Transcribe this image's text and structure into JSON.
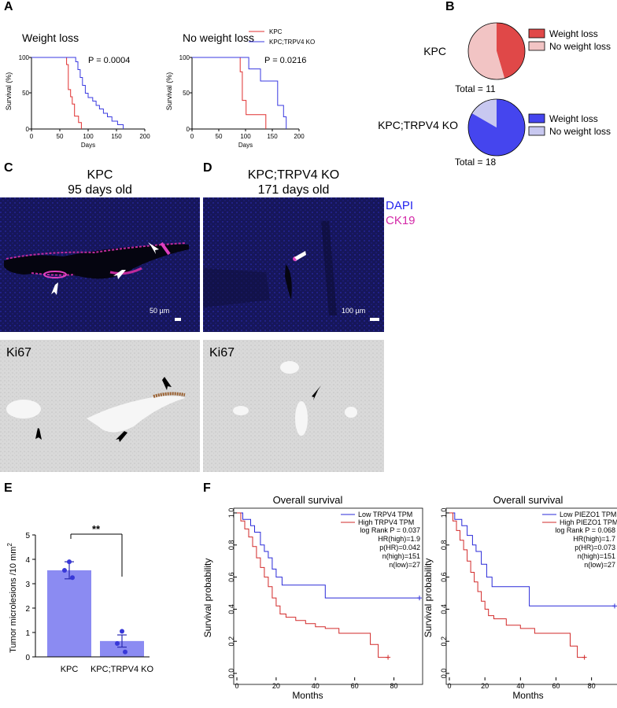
{
  "panel_labels": {
    "a": "A",
    "b": "B",
    "c": "C",
    "d": "D",
    "e": "E",
    "f": "F"
  },
  "panel_a": {
    "ylabel": "Survival (%)",
    "xlabel": "Days",
    "yticks": [
      "0",
      "50",
      "100"
    ],
    "legend": {
      "kpc": "KPC",
      "ko": "KPC;TRPV4 KO"
    },
    "colors": {
      "kpc": "#e03030",
      "ko": "#3a3ae0"
    },
    "left": {
      "title": "Weight loss",
      "pvalue": "P = 0.0004",
      "xticks": [
        "0",
        "50",
        "100",
        "150",
        "200"
      ],
      "chart_data": {
        "type": "line",
        "xlim": [
          0,
          200
        ],
        "ylim": [
          0,
          100
        ],
        "series": [
          {
            "name": "KPC",
            "steps": [
              [
                0,
                100
              ],
              [
                62,
                100
              ],
              [
                62,
                90
              ],
              [
                65,
                90
              ],
              [
                65,
                55
              ],
              [
                69,
                55
              ],
              [
                69,
                45
              ],
              [
                72,
                45
              ],
              [
                72,
                35
              ],
              [
                76,
                35
              ],
              [
                76,
                18
              ],
              [
                83,
                18
              ],
              [
                83,
                9
              ],
              [
                88,
                9
              ],
              [
                88,
                0
              ]
            ]
          },
          {
            "name": "KPC;TRPV4 KO",
            "steps": [
              [
                0,
                100
              ],
              [
                78,
                100
              ],
              [
                78,
                94
              ],
              [
                82,
                94
              ],
              [
                82,
                83
              ],
              [
                86,
                83
              ],
              [
                86,
                72
              ],
              [
                90,
                72
              ],
              [
                90,
                61
              ],
              [
                95,
                61
              ],
              [
                95,
                50
              ],
              [
                100,
                50
              ],
              [
                100,
                44
              ],
              [
                108,
                44
              ],
              [
                108,
                39
              ],
              [
                114,
                39
              ],
              [
                114,
                33
              ],
              [
                120,
                33
              ],
              [
                120,
                28
              ],
              [
                127,
                28
              ],
              [
                127,
                22
              ],
              [
                134,
                22
              ],
              [
                134,
                17
              ],
              [
                142,
                17
              ],
              [
                142,
                11
              ],
              [
                152,
                11
              ],
              [
                152,
                6
              ],
              [
                162,
                6
              ],
              [
                162,
                0
              ]
            ]
          }
        ]
      }
    },
    "right": {
      "title": "No weight loss",
      "pvalue": "P = 0.0216",
      "xticks": [
        "0",
        "50",
        "100",
        "150",
        "200"
      ],
      "chart_data": {
        "type": "line",
        "xlim": [
          0,
          200
        ],
        "ylim": [
          0,
          100
        ],
        "series": [
          {
            "name": "KPC",
            "steps": [
              [
                0,
                100
              ],
              [
                90,
                100
              ],
              [
                90,
                80
              ],
              [
                94,
                80
              ],
              [
                94,
                40
              ],
              [
                101,
                40
              ],
              [
                101,
                20
              ],
              [
                138,
                20
              ],
              [
                138,
                0
              ]
            ]
          },
          {
            "name": "KPC;TRPV4 KO",
            "steps": [
              [
                0,
                100
              ],
              [
                106,
                100
              ],
              [
                106,
                84
              ],
              [
                128,
                84
              ],
              [
                128,
                67
              ],
              [
                160,
                67
              ],
              [
                160,
                33
              ],
              [
                171,
                33
              ],
              [
                171,
                17
              ],
              [
                176,
                17
              ],
              [
                176,
                0
              ]
            ]
          }
        ]
      }
    }
  },
  "panel_b": {
    "kpc": {
      "label": "KPC",
      "total": "Total = 11",
      "chart_data": {
        "type": "pie",
        "slices": [
          {
            "name": "Weight loss",
            "value": 5,
            "color": "#e04848"
          },
          {
            "name": "No weight loss",
            "value": 6,
            "color": "#f2c4c4"
          }
        ]
      }
    },
    "ko": {
      "label": "KPC;TRPV4 KO",
      "total": "Total = 18",
      "chart_data": {
        "type": "pie",
        "slices": [
          {
            "name": "Weight loss",
            "value": 15,
            "color": "#4545ee"
          },
          {
            "name": "No weight loss",
            "value": 3,
            "color": "#c8c8f0"
          }
        ]
      }
    }
  },
  "panel_c": {
    "title_line1": "KPC",
    "title_line2": "95 days old",
    "scalebar": "50 µm",
    "ihc_label": "Ki67"
  },
  "panel_d": {
    "title_line1": "KPC;TRPV4 KO",
    "title_line2": "171 days old",
    "scalebar": "100 µm",
    "ihc_label": "Ki67"
  },
  "stain_legend": {
    "dapi": "DAPI",
    "ck19": "CK19",
    "dapi_color": "#2222ee",
    "ck19_color": "#d42aa8"
  },
  "panel_e": {
    "ylabel": "Tumor microlesions /10 mm",
    "ylabel_sup": "2",
    "significance": "**",
    "yticks": [
      "0",
      "1",
      "2",
      "3",
      "4",
      "5"
    ],
    "chart_data": {
      "type": "bar",
      "categories": [
        "KPC",
        "KPC;TRPV4 KO"
      ],
      "values": [
        3.55,
        0.65
      ],
      "errors": [
        0.35,
        0.25
      ],
      "points": [
        [
          3.9,
          3.55,
          3.25
        ],
        [
          1.05,
          0.55,
          0.2
        ]
      ],
      "ylim": [
        0,
        5
      ],
      "color": "#8b8bf2"
    }
  },
  "panel_f": {
    "title": "Overall survival",
    "ylabel": "Survival probability",
    "xlabel": "Months",
    "yticks": [
      "0.0",
      "0.2",
      "0.4",
      "0.6",
      "0.8",
      "1.0"
    ],
    "xticks": [
      "0",
      "20",
      "40",
      "60",
      "80"
    ],
    "left": {
      "legend_low": "Low TRPV4 TPM",
      "legend_high": "High TRPV4 TPM",
      "stats": [
        "log Rank P = 0.037",
        "HR(high)=1.9",
        "p(HR)=0.042",
        "n(high)=151",
        "n(low)=27"
      ],
      "chart_data": {
        "type": "line",
        "xlim": [
          0,
          93
        ],
        "ylim": [
          0,
          1
        ],
        "series": [
          {
            "name": "Low TRPV4 TPM",
            "steps": [
              [
                0,
                1
              ],
              [
                3,
                1
              ],
              [
                3,
                0.96
              ],
              [
                7,
                0.96
              ],
              [
                7,
                0.92
              ],
              [
                9,
                0.92
              ],
              [
                9,
                0.88
              ],
              [
                12,
                0.88
              ],
              [
                12,
                0.8
              ],
              [
                14,
                0.8
              ],
              [
                14,
                0.76
              ],
              [
                16,
                0.76
              ],
              [
                16,
                0.72
              ],
              [
                18,
                0.72
              ],
              [
                18,
                0.65
              ],
              [
                20,
                0.65
              ],
              [
                20,
                0.6
              ],
              [
                23,
                0.6
              ],
              [
                23,
                0.55
              ],
              [
                45,
                0.55
              ],
              [
                45,
                0.47
              ],
              [
                93,
                0.47
              ]
            ]
          },
          {
            "name": "High TRPV4 TPM",
            "steps": [
              [
                0,
                1
              ],
              [
                2,
                1
              ],
              [
                2,
                0.95
              ],
              [
                4,
                0.95
              ],
              [
                4,
                0.9
              ],
              [
                6,
                0.9
              ],
              [
                6,
                0.85
              ],
              [
                8,
                0.85
              ],
              [
                8,
                0.79
              ],
              [
                10,
                0.79
              ],
              [
                10,
                0.72
              ],
              [
                12,
                0.72
              ],
              [
                12,
                0.66
              ],
              [
                14,
                0.66
              ],
              [
                14,
                0.6
              ],
              [
                16,
                0.6
              ],
              [
                16,
                0.54
              ],
              [
                18,
                0.54
              ],
              [
                18,
                0.47
              ],
              [
                20,
                0.47
              ],
              [
                20,
                0.42
              ],
              [
                22,
                0.42
              ],
              [
                22,
                0.37
              ],
              [
                25,
                0.37
              ],
              [
                25,
                0.35
              ],
              [
                30,
                0.35
              ],
              [
                30,
                0.33
              ],
              [
                35,
                0.33
              ],
              [
                35,
                0.31
              ],
              [
                40,
                0.31
              ],
              [
                40,
                0.29
              ],
              [
                45,
                0.29
              ],
              [
                45,
                0.28
              ],
              [
                52,
                0.28
              ],
              [
                52,
                0.25
              ],
              [
                68,
                0.25
              ],
              [
                68,
                0.18
              ],
              [
                72,
                0.18
              ],
              [
                72,
                0.1
              ],
              [
                77,
                0.1
              ]
            ]
          }
        ]
      }
    },
    "right": {
      "legend_low": "Low PIEZO1 TPM",
      "legend_high": "High PIEZO1 TPM",
      "stats": [
        "log Rank P = 0.068",
        "HR(high)=1.7",
        "p(HR)=0.073",
        "n(high)=151",
        "n(low)=27"
      ],
      "chart_data": {
        "type": "line",
        "xlim": [
          0,
          93
        ],
        "ylim": [
          0,
          1
        ],
        "series": [
          {
            "name": "Low PIEZO1 TPM",
            "steps": [
              [
                0,
                1
              ],
              [
                3,
                1
              ],
              [
                3,
                0.96
              ],
              [
                7,
                0.96
              ],
              [
                7,
                0.92
              ],
              [
                10,
                0.92
              ],
              [
                10,
                0.86
              ],
              [
                13,
                0.86
              ],
              [
                13,
                0.8
              ],
              [
                15,
                0.8
              ],
              [
                15,
                0.76
              ],
              [
                18,
                0.76
              ],
              [
                18,
                0.68
              ],
              [
                21,
                0.68
              ],
              [
                21,
                0.6
              ],
              [
                24,
                0.6
              ],
              [
                24,
                0.54
              ],
              [
                45,
                0.54
              ],
              [
                45,
                0.42
              ],
              [
                93,
                0.42
              ]
            ]
          },
          {
            "name": "High PIEZO1 TPM",
            "steps": [
              [
                0,
                1
              ],
              [
                2,
                1
              ],
              [
                2,
                0.95
              ],
              [
                4,
                0.95
              ],
              [
                4,
                0.89
              ],
              [
                6,
                0.89
              ],
              [
                6,
                0.83
              ],
              [
                8,
                0.83
              ],
              [
                8,
                0.77
              ],
              [
                10,
                0.77
              ],
              [
                10,
                0.7
              ],
              [
                12,
                0.7
              ],
              [
                12,
                0.63
              ],
              [
                14,
                0.63
              ],
              [
                14,
                0.57
              ],
              [
                16,
                0.57
              ],
              [
                16,
                0.51
              ],
              [
                18,
                0.51
              ],
              [
                18,
                0.45
              ],
              [
                20,
                0.45
              ],
              [
                20,
                0.4
              ],
              [
                22,
                0.4
              ],
              [
                22,
                0.36
              ],
              [
                25,
                0.36
              ],
              [
                25,
                0.34
              ],
              [
                32,
                0.34
              ],
              [
                32,
                0.3
              ],
              [
                40,
                0.3
              ],
              [
                40,
                0.28
              ],
              [
                48,
                0.28
              ],
              [
                48,
                0.25
              ],
              [
                68,
                0.25
              ],
              [
                68,
                0.17
              ],
              [
                72,
                0.17
              ],
              [
                72,
                0.1
              ],
              [
                76,
                0.1
              ]
            ]
          }
        ]
      }
    }
  }
}
